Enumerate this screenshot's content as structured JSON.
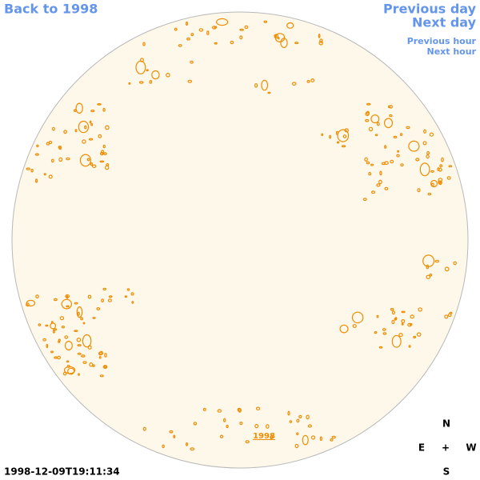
{
  "header": {
    "back_link": "Back to 1998",
    "previous_day": "Previous day",
    "next_day": "Next day",
    "previous_hour": "Previous hour",
    "next_hour": "Next hour"
  },
  "disk": {
    "year_link": "1998"
  },
  "footer": {
    "timestamp": "1998-12-09T19:11:34"
  },
  "compass": {
    "north": "N",
    "east": "E",
    "center": "+",
    "west": "W",
    "south": "S"
  }
}
